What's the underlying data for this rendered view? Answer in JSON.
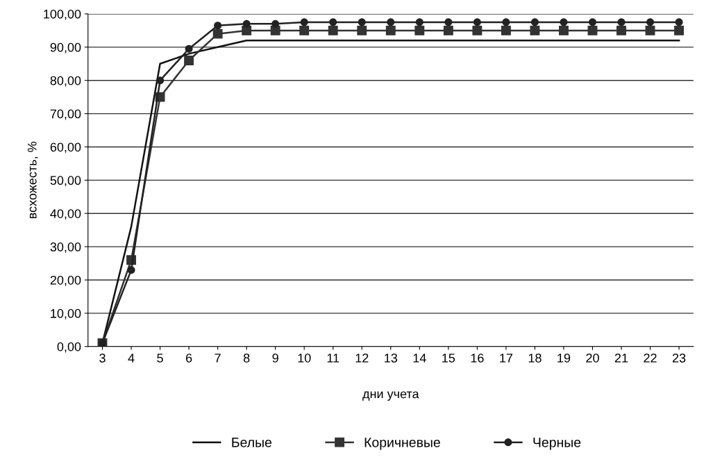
{
  "chart_data": {
    "type": "line",
    "xlabel": "дни учета",
    "ylabel": "всхожесть, %",
    "categories": [
      "3",
      "4",
      "5",
      "6",
      "7",
      "8",
      "9",
      "10",
      "11",
      "12",
      "13",
      "14",
      "15",
      "16",
      "17",
      "18",
      "19",
      "20",
      "21",
      "22",
      "23"
    ],
    "series": [
      {
        "name": "Белые",
        "color": "#111111",
        "marker": "none",
        "values": [
          1,
          36,
          85,
          88,
          90,
          92,
          92,
          92,
          92,
          92,
          92,
          92,
          92,
          92,
          92,
          92,
          92,
          92,
          92,
          92,
          92
        ]
      },
      {
        "name": "Коричневые",
        "color": "#333333",
        "marker": "square",
        "values": [
          1,
          26,
          75,
          86,
          94,
          95,
          95,
          95,
          95,
          95,
          95,
          95,
          95,
          95,
          95,
          95,
          95,
          95,
          95,
          95,
          95
        ]
      },
      {
        "name": "Черные",
        "color": "#222222",
        "marker": "circle",
        "values": [
          1,
          23,
          80,
          89.5,
          96.5,
          97,
          97,
          97.5,
          97.5,
          97.5,
          97.5,
          97.5,
          97.5,
          97.5,
          97.5,
          97.5,
          97.5,
          97.5,
          97.5,
          97.5,
          97.5
        ]
      }
    ],
    "ylim": [
      0,
      100
    ],
    "yticks": [
      {
        "value": 0,
        "label": "0,00"
      },
      {
        "value": 10,
        "label": "10,00"
      },
      {
        "value": 20,
        "label": "20,00"
      },
      {
        "value": 30,
        "label": "30,00"
      },
      {
        "value": 40,
        "label": "40,00"
      },
      {
        "value": 50,
        "label": "50,00"
      },
      {
        "value": 60,
        "label": "60,00"
      },
      {
        "value": 70,
        "label": "70,00"
      },
      {
        "value": 80,
        "label": "80,00"
      },
      {
        "value": 90,
        "label": "90,00"
      },
      {
        "value": 100,
        "label": "100,00"
      }
    ],
    "grid": "y",
    "legend": "bottom",
    "line_style": "solid"
  }
}
